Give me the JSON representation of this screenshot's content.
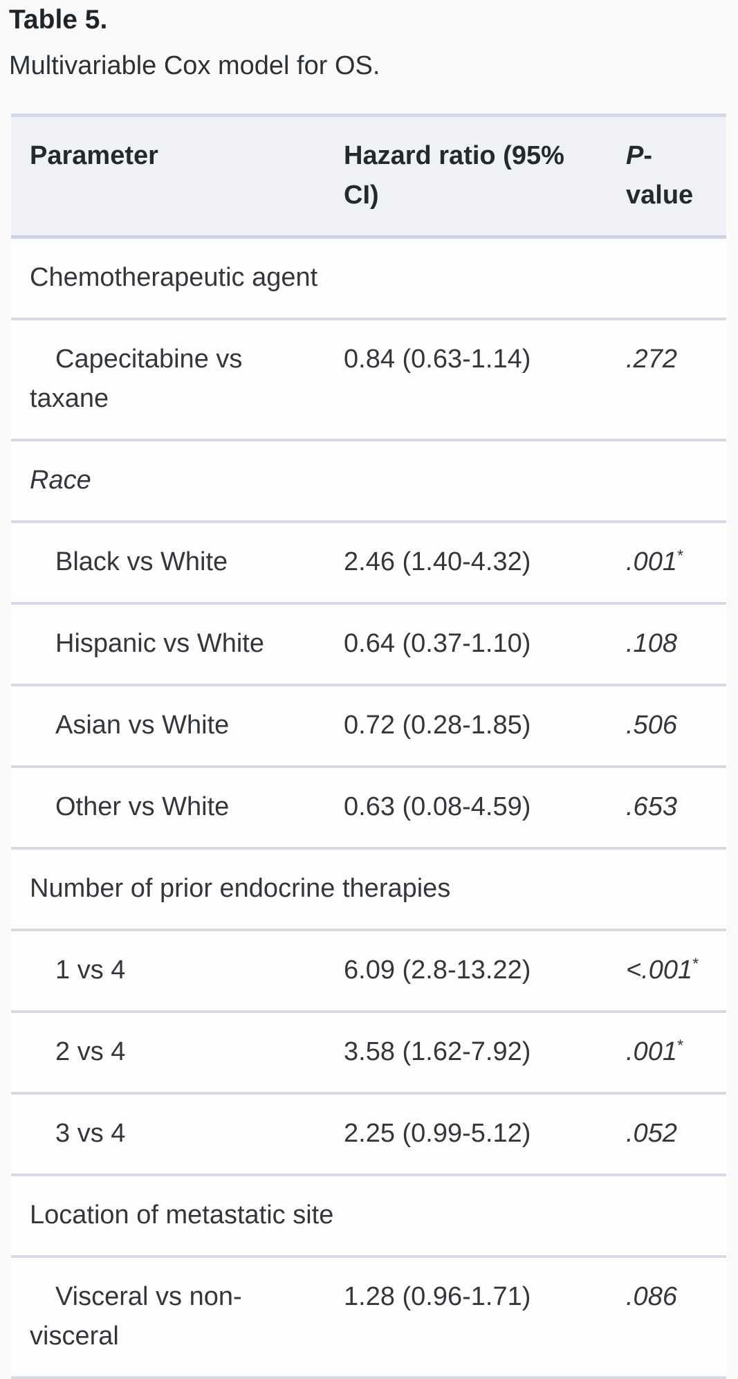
{
  "title": "Table 5.",
  "caption": "Multivariable Cox model for OS.",
  "colors": {
    "page_bg": "#fafafa",
    "row_bg": "#fefefe",
    "header_bg": "#eff1f6",
    "border_top": "#d5d9e3",
    "row_divider": "#d6dae4",
    "text": "#33373b"
  },
  "table": {
    "columns": [
      {
        "key": "param",
        "label": "Parameter",
        "italic_first_char": false
      },
      {
        "key": "hr",
        "label": "Hazard ratio (95% CI)",
        "italic_first_char": false
      },
      {
        "key": "p",
        "label": "P-value",
        "italic_first_char": true
      }
    ],
    "rows": [
      {
        "type": "category",
        "label": "Chemotherapeutic agent",
        "italic": false
      },
      {
        "type": "item",
        "label": "Capecitabine vs taxane",
        "hr": "0.84 (0.63-1.14)",
        "p": ".272",
        "sig": false
      },
      {
        "type": "category",
        "label": "Race",
        "italic": true
      },
      {
        "type": "item",
        "label": "Black vs White",
        "hr": "2.46 (1.40-4.32)",
        "p": ".001",
        "sig": true
      },
      {
        "type": "item",
        "label": "Hispanic vs White",
        "hr": "0.64 (0.37-1.10)",
        "p": ".108",
        "sig": false
      },
      {
        "type": "item",
        "label": "Asian vs White",
        "hr": "0.72 (0.28-1.85)",
        "p": ".506",
        "sig": false
      },
      {
        "type": "item",
        "label": "Other vs White",
        "hr": "0.63 (0.08-4.59)",
        "p": ".653",
        "sig": false
      },
      {
        "type": "category",
        "label": "Number of prior endocrine therapies",
        "italic": false
      },
      {
        "type": "item",
        "label": "1 vs 4",
        "hr": "6.09 (2.8-13.22)",
        "p": "<.001",
        "sig": true
      },
      {
        "type": "item",
        "label": "2 vs 4",
        "hr": "3.58 (1.62-7.92)",
        "p": ".001",
        "sig": true
      },
      {
        "type": "item",
        "label": "3 vs 4",
        "hr": "2.25 (0.99-5.12)",
        "p": ".052",
        "sig": false
      },
      {
        "type": "category",
        "label": "Location of metastatic site",
        "italic": false
      },
      {
        "type": "item",
        "label": "Visceral vs non-visceral",
        "hr": "1.28 (0.96-1.71)",
        "p": ".086",
        "sig": false
      }
    ],
    "significance_marker": "*"
  }
}
